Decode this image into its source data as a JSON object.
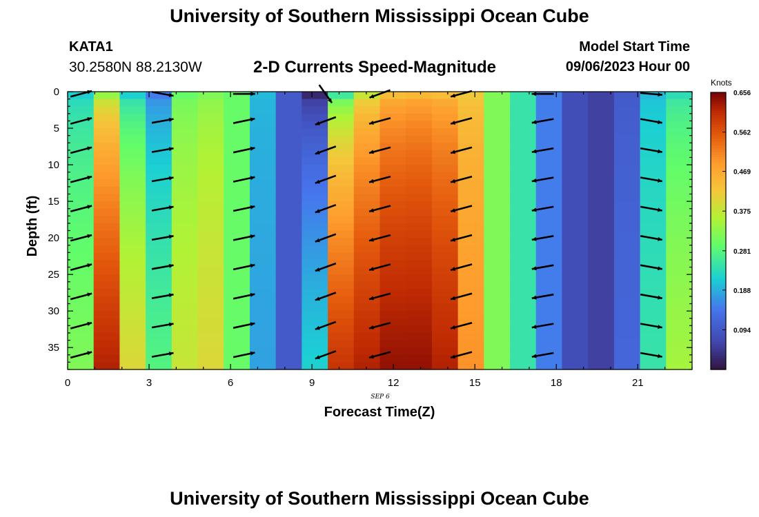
{
  "page": {
    "title": "University of Southern Mississippi Ocean Cube",
    "bottom_title": "University of Southern Mississippi Ocean Cube",
    "station_id": "KATA1",
    "coords": "30.2580N  88.2130W",
    "plot_title": "2-D Currents Speed-Magnitude",
    "start_label": "Model Start Time",
    "start_value": "09/06/2023 Hour 00"
  },
  "chart_data": {
    "type": "heatmap",
    "xlabel": "Forecast Time(Z)",
    "ylabel": "Depth (ft)",
    "date_label": "SEP 6",
    "x_ticks": [
      0,
      3,
      6,
      9,
      12,
      15,
      18,
      21
    ],
    "y_ticks": [
      0,
      5,
      10,
      15,
      20,
      25,
      30,
      35
    ],
    "xlim": [
      0,
      23
    ],
    "ylim": [
      38,
      0
    ],
    "colorbar": {
      "title": "Knots",
      "ticks": [
        "0.656",
        "0.562",
        "0.469",
        "0.375",
        "0.281",
        "0.188",
        "0.094"
      ],
      "range": [
        0,
        0.656
      ]
    },
    "speed_profile": {
      "hours": [
        0,
        1,
        2,
        3,
        4,
        5,
        6,
        7,
        8,
        9,
        10,
        11,
        12,
        13,
        14,
        15,
        16,
        17,
        18,
        19,
        20,
        21,
        22,
        23
      ],
      "near_surface": [
        0.22,
        0.34,
        0.22,
        0.15,
        0.3,
        0.32,
        0.3,
        0.2,
        0.1,
        0.03,
        0.26,
        0.38,
        0.44,
        0.45,
        0.44,
        0.42,
        0.32,
        0.25,
        0.15,
        0.08,
        0.06,
        0.1,
        0.2,
        0.24
      ],
      "at_bottom": [
        0.32,
        0.62,
        0.4,
        0.28,
        0.38,
        0.4,
        0.3,
        0.18,
        0.1,
        0.22,
        0.6,
        0.62,
        0.64,
        0.64,
        0.62,
        0.5,
        0.32,
        0.25,
        0.15,
        0.08,
        0.06,
        0.12,
        0.25,
        0.35
      ]
    },
    "vector_hours": [
      0.5,
      3.5,
      6.5,
      9.5,
      11.5,
      14.5,
      17.5,
      21.5
    ],
    "vector_depths": [
      4,
      8,
      12,
      16,
      20,
      24,
      28,
      32,
      36
    ],
    "vector_bearing_deg": [
      75,
      80,
      78,
      250,
      255,
      255,
      260,
      100
    ],
    "vector_surface_bearing_deg": [
      75,
      100,
      90,
      145,
      250,
      255,
      270,
      95
    ]
  }
}
